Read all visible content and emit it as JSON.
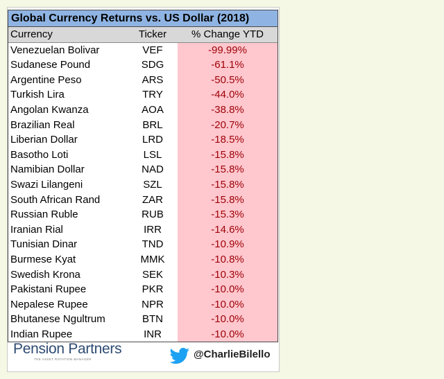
{
  "chart_data": {
    "type": "table",
    "title": "Global Currency Returns vs. US Dollar (2018)",
    "columns": [
      "Currency",
      "Ticker",
      "% Change YTD"
    ],
    "rows": [
      {
        "currency": "Venezuelan Bolivar",
        "ticker": "VEF",
        "change": "-99.99%"
      },
      {
        "currency": "Sudanese Pound",
        "ticker": "SDG",
        "change": "-61.1%"
      },
      {
        "currency": "Argentine Peso",
        "ticker": "ARS",
        "change": "-50.5%"
      },
      {
        "currency": "Turkish Lira",
        "ticker": "TRY",
        "change": "-44.0%"
      },
      {
        "currency": "Angolan Kwanza",
        "ticker": "AOA",
        "change": "-38.8%"
      },
      {
        "currency": "Brazilian Real",
        "ticker": "BRL",
        "change": "-20.7%"
      },
      {
        "currency": "Liberian Dollar",
        "ticker": "LRD",
        "change": "-18.5%"
      },
      {
        "currency": "Basotho Loti",
        "ticker": "LSL",
        "change": "-15.8%"
      },
      {
        "currency": "Namibian Dollar",
        "ticker": "NAD",
        "change": "-15.8%"
      },
      {
        "currency": "Swazi Lilangeni",
        "ticker": "SZL",
        "change": "-15.8%"
      },
      {
        "currency": "South African Rand",
        "ticker": "ZAR",
        "change": "-15.8%"
      },
      {
        "currency": "Russian Ruble",
        "ticker": "RUB",
        "change": "-15.3%"
      },
      {
        "currency": "Iranian Rial",
        "ticker": "IRR",
        "change": "-14.6%"
      },
      {
        "currency": "Tunisian Dinar",
        "ticker": "TND",
        "change": "-10.9%"
      },
      {
        "currency": "Burmese Kyat",
        "ticker": "MMK",
        "change": "-10.8%"
      },
      {
        "currency": "Swedish Krona",
        "ticker": "SEK",
        "change": "-10.3%"
      },
      {
        "currency": "Pakistani Rupee",
        "ticker": "PKR",
        "change": "-10.0%"
      },
      {
        "currency": "Nepalese Rupee",
        "ticker": "NPR",
        "change": "-10.0%"
      },
      {
        "currency": "Bhutanese Ngultrum",
        "ticker": "BTN",
        "change": "-10.0%"
      },
      {
        "currency": "Indian Rupee",
        "ticker": "INR",
        "change": "-10.0%"
      }
    ]
  },
  "footer": {
    "logo_text": "Pension Partners",
    "logo_tagline": "THE ASSET ROTATION MANAGER",
    "handle": "@CharlieBilello",
    "twitter_icon": "twitter-bird-icon"
  },
  "colors": {
    "title_bg": "#8fb4e3",
    "header_bg": "#d8d8d8",
    "negative_fill": "#ffc7ce",
    "negative_text": "#9c0006",
    "page_bg": "#f4f8e4",
    "logo": "#2e4b73",
    "twitter": "#1da1f2"
  }
}
